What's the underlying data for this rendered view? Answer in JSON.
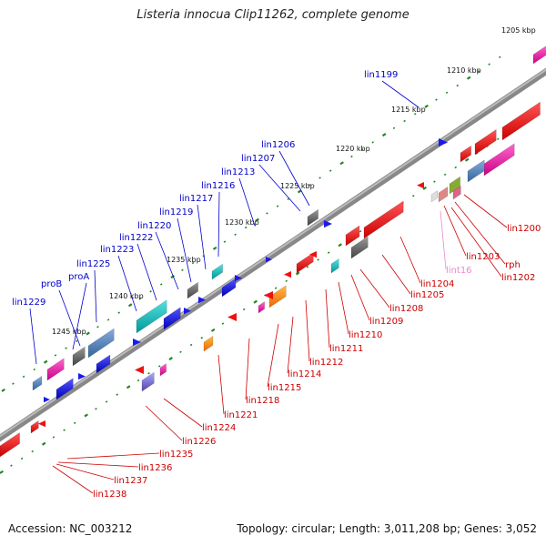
{
  "title": "Listeria innocua Clip11262, complete genome",
  "footer": {
    "accession": "Accession: NC_003212",
    "summary": "Topology: circular; Length: 3,011,208 bp; Genes: 3,052"
  },
  "scale_labels": [
    "1205 kbp",
    "1210 kbp",
    "1215 kbp",
    "1220 kbp",
    "1225 kbp",
    "1230 kbp",
    "1235 kbp",
    "1240 kbp",
    "1245 kbp"
  ],
  "forward_labels": [
    "lin1199",
    "lin1206",
    "lin1207",
    "lin1213",
    "lin1216",
    "lin1217",
    "lin1219",
    "lin1220",
    "lin1222",
    "lin1223",
    "lin1225",
    "proB",
    "proA",
    "lin1229"
  ],
  "reverse_labels": [
    "lin1200",
    "rph",
    "lin1203",
    "lin1202",
    "lint16",
    "lin1204",
    "lin1205",
    "lin1208",
    "lin1209",
    "lin1210",
    "lin1211",
    "lin1212",
    "lin1214",
    "lin1215",
    "lin1218",
    "lin1221",
    "lin1224",
    "lin1226",
    "lin1235",
    "lin1236",
    "lin1237",
    "lin1238"
  ],
  "colors": {
    "forward_label": "#0000cc",
    "reverse_label": "#cc0000",
    "trna_label": "#ee88cc",
    "backbone": "#888888",
    "tick": "#228822",
    "forward_gene": "#1a1aee",
    "reverse_gene": "#ee1111"
  }
}
